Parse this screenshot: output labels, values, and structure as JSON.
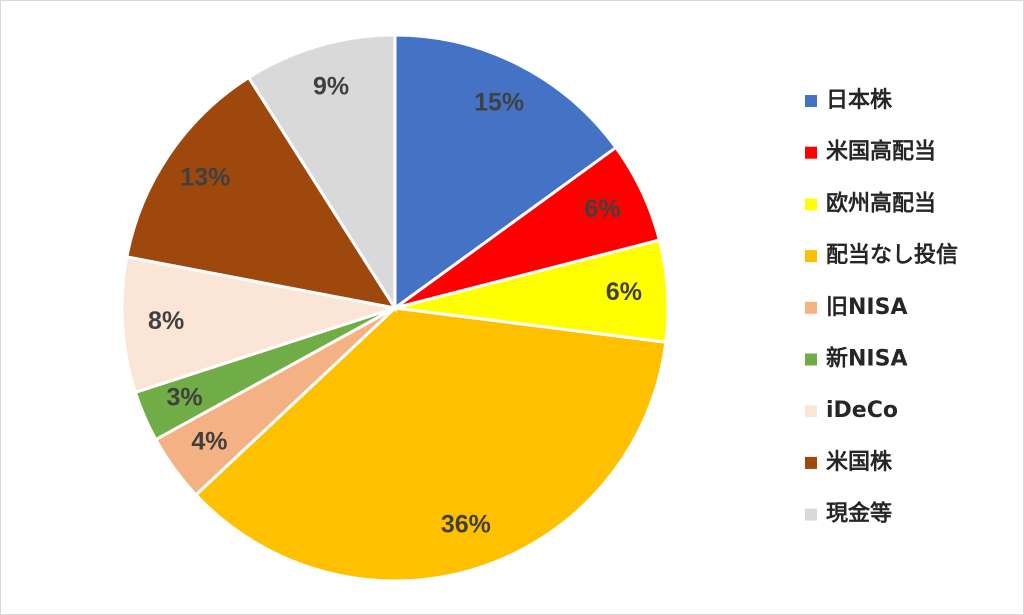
{
  "chart_data": {
    "type": "pie",
    "categories": [
      "日本株",
      "米国高配当",
      "欧州高配当",
      "配当なし投信",
      "旧NISA",
      "新NISA",
      "iDeCo",
      "米国株",
      "現金等"
    ],
    "values": [
      15,
      6,
      6,
      36,
      4,
      3,
      8,
      13,
      9
    ],
    "value_labels": [
      "15%",
      "6%",
      "6%",
      "36%",
      "4%",
      "3%",
      "8%",
      "13%",
      "9%"
    ],
    "colors": [
      "#4472c4",
      "#ff0000",
      "#ffff00",
      "#ffc000",
      "#f4b183",
      "#70ad47",
      "#fbe5d6",
      "#9e480e",
      "#d9d9d9"
    ],
    "legend": "right"
  }
}
